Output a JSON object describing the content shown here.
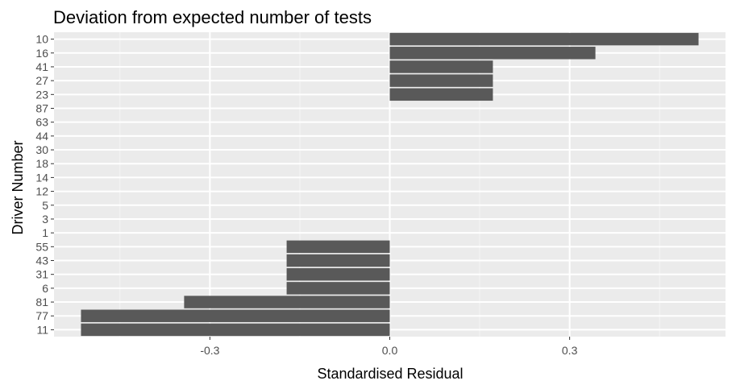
{
  "chart_data": {
    "type": "bar",
    "orientation": "horizontal",
    "title": "Deviation from expected number of tests",
    "xlabel": "Standardised Residual",
    "ylabel": "Driver Number",
    "categories": [
      "10",
      "16",
      "41",
      "27",
      "23",
      "87",
      "63",
      "44",
      "30",
      "18",
      "14",
      "12",
      "5",
      "3",
      "1",
      "55",
      "43",
      "31",
      "6",
      "81",
      "77",
      "11"
    ],
    "values": [
      0.515,
      0.343,
      0.172,
      0.172,
      0.172,
      0,
      0,
      0,
      0,
      0,
      0,
      0,
      0,
      0,
      0,
      -0.172,
      -0.172,
      -0.172,
      -0.172,
      -0.343,
      -0.515,
      -0.515
    ],
    "xlim": [
      -0.56,
      0.56
    ],
    "xticks": [
      -0.3,
      0.0,
      0.3
    ],
    "xtick_labels": [
      "-0.3",
      "0.0",
      "0.3"
    ],
    "grid": true,
    "colors": {
      "bar": "#595959",
      "panel": "#ebebeb",
      "grid_major": "#ffffff",
      "grid_minor": "#f5f5f5"
    }
  }
}
